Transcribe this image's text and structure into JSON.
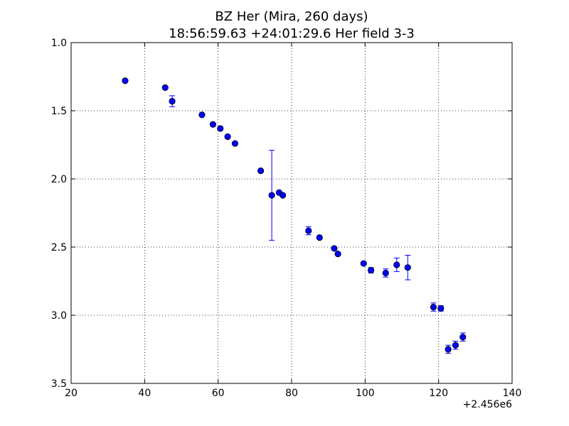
{
  "chart_data": {
    "type": "scatter",
    "title": "BZ Her (Mira, 260 days)",
    "subtitle": "18:56:59.63 +24:01:29.6 Her field 3-3",
    "xlabel": "",
    "ylabel": "",
    "x_offset_label": "+2.456e6",
    "xlim": [
      20,
      140
    ],
    "ylim": [
      3.5,
      1.0
    ],
    "y_inverted": true,
    "grid": true,
    "x_ticks": [
      "20",
      "40",
      "60",
      "80",
      "100",
      "120",
      "140"
    ],
    "y_ticks": [
      "1.0",
      "1.5",
      "2.0",
      "2.5",
      "3.0",
      "3.5"
    ],
    "marker_color": "#0000ff",
    "series": [
      {
        "points": [
          {
            "x": 34.7,
            "y": 1.28,
            "err": 0.0
          },
          {
            "x": 45.6,
            "y": 1.33,
            "err": 0.0
          },
          {
            "x": 47.5,
            "y": 1.43,
            "err": 0.04
          },
          {
            "x": 55.6,
            "y": 1.53,
            "err": 0.0
          },
          {
            "x": 58.6,
            "y": 1.6,
            "err": 0.0
          },
          {
            "x": 60.6,
            "y": 1.63,
            "err": 0.0
          },
          {
            "x": 62.6,
            "y": 1.69,
            "err": 0.0
          },
          {
            "x": 64.6,
            "y": 1.74,
            "err": 0.0
          },
          {
            "x": 71.6,
            "y": 1.94,
            "err": 0.0
          },
          {
            "x": 74.6,
            "y": 2.12,
            "err": 0.33
          },
          {
            "x": 76.6,
            "y": 2.1,
            "err": 0.0
          },
          {
            "x": 77.6,
            "y": 2.12,
            "err": 0.0
          },
          {
            "x": 84.6,
            "y": 2.38,
            "err": 0.03
          },
          {
            "x": 87.6,
            "y": 2.43,
            "err": 0.0
          },
          {
            "x": 91.6,
            "y": 2.51,
            "err": 0.0
          },
          {
            "x": 92.6,
            "y": 2.55,
            "err": 0.0
          },
          {
            "x": 99.6,
            "y": 2.62,
            "err": 0.0
          },
          {
            "x": 101.6,
            "y": 2.67,
            "err": 0.02
          },
          {
            "x": 105.6,
            "y": 2.69,
            "err": 0.03
          },
          {
            "x": 108.6,
            "y": 2.63,
            "err": 0.05
          },
          {
            "x": 111.6,
            "y": 2.65,
            "err": 0.09
          },
          {
            "x": 118.6,
            "y": 2.94,
            "err": 0.03
          },
          {
            "x": 120.6,
            "y": 2.95,
            "err": 0.02
          },
          {
            "x": 122.6,
            "y": 3.25,
            "err": 0.03
          },
          {
            "x": 124.6,
            "y": 3.22,
            "err": 0.03
          },
          {
            "x": 126.6,
            "y": 3.16,
            "err": 0.03
          }
        ]
      }
    ]
  }
}
